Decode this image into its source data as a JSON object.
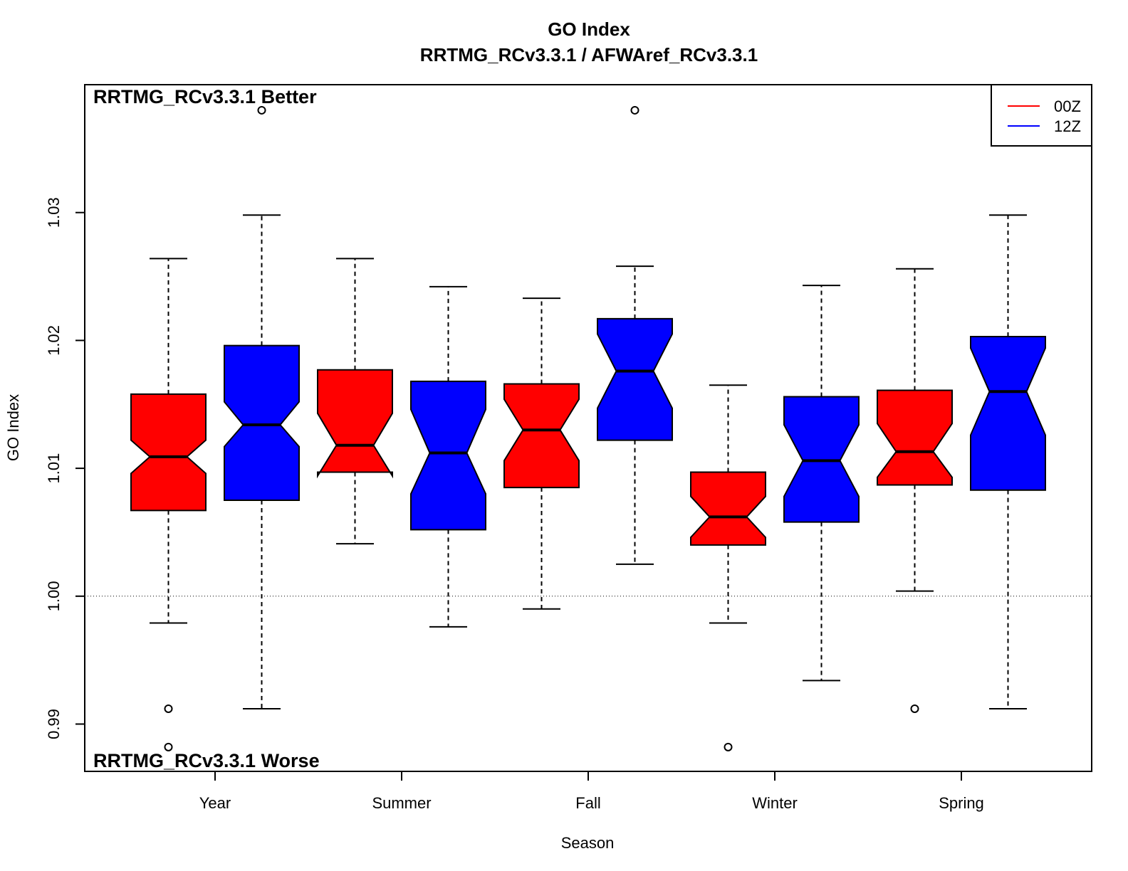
{
  "chart_data": {
    "type": "boxplot",
    "title": "GO Index",
    "subtitle": "RRTMG_RCv3.3.1 / AFWAref_RCv3.3.1",
    "xlabel": "Season",
    "ylabel": "GO Index",
    "ylim": [
      0.9863,
      1.04
    ],
    "yticks": [
      "0.99",
      "1.00",
      "1.01",
      "1.02",
      "1.03"
    ],
    "reference_line": 1.0,
    "annotations": {
      "top": "RRTMG_RCv3.3.1 Better",
      "bottom": "RRTMG_RCv3.3.1 Worse"
    },
    "categories": [
      "Year",
      "Summer",
      "Fall",
      "Winter",
      "Spring"
    ],
    "legend": {
      "position": "top-right",
      "entries": [
        {
          "label": "00Z",
          "color": "#ff0000"
        },
        {
          "label": "12Z",
          "color": "#0000ff"
        }
      ]
    },
    "series": [
      {
        "name": "00Z",
        "color": "#ff0000",
        "boxes": [
          {
            "category": "Year",
            "whisker_low": 0.9979,
            "q1": 1.0067,
            "median": 1.0109,
            "q3": 1.0158,
            "whisker_high": 1.0264,
            "notch_low": 1.0096,
            "notch_high": 1.0122,
            "outliers": [
              0.9912,
              0.9882
            ]
          },
          {
            "category": "Summer",
            "whisker_low": 1.0041,
            "q1": 1.0097,
            "median": 1.0118,
            "q3": 1.0177,
            "whisker_high": 1.0264,
            "notch_low": 1.0094,
            "notch_high": 1.0143,
            "outliers": []
          },
          {
            "category": "Fall",
            "whisker_low": 0.999,
            "q1": 1.0085,
            "median": 1.013,
            "q3": 1.0166,
            "whisker_high": 1.0233,
            "notch_low": 1.0106,
            "notch_high": 1.0154,
            "outliers": []
          },
          {
            "category": "Winter",
            "whisker_low": 0.9979,
            "q1": 1.004,
            "median": 1.0062,
            "q3": 1.0097,
            "whisker_high": 1.0165,
            "notch_low": 1.0046,
            "notch_high": 1.0078,
            "outliers": [
              0.9882
            ]
          },
          {
            "category": "Spring",
            "whisker_low": 1.0004,
            "q1": 1.0087,
            "median": 1.0113,
            "q3": 1.0161,
            "whisker_high": 1.0256,
            "notch_low": 1.0093,
            "notch_high": 1.0135,
            "outliers": [
              0.9912
            ]
          }
        ]
      },
      {
        "name": "12Z",
        "color": "#0000ff",
        "boxes": [
          {
            "category": "Year",
            "whisker_low": 0.9912,
            "q1": 1.0075,
            "median": 1.0134,
            "q3": 1.0196,
            "whisker_high": 1.0298,
            "notch_low": 1.0117,
            "notch_high": 1.0152,
            "outliers": [
              1.038
            ]
          },
          {
            "category": "Summer",
            "whisker_low": 0.9976,
            "q1": 1.0052,
            "median": 1.0112,
            "q3": 1.0168,
            "whisker_high": 1.0242,
            "notch_low": 1.008,
            "notch_high": 1.0146,
            "outliers": []
          },
          {
            "category": "Fall",
            "whisker_low": 1.0025,
            "q1": 1.0122,
            "median": 1.0176,
            "q3": 1.0217,
            "whisker_high": 1.0258,
            "notch_low": 1.0147,
            "notch_high": 1.0205,
            "outliers": [
              1.038
            ]
          },
          {
            "category": "Winter",
            "whisker_low": 0.9934,
            "q1": 1.0058,
            "median": 1.0106,
            "q3": 1.0156,
            "whisker_high": 1.0243,
            "notch_low": 1.0078,
            "notch_high": 1.0134,
            "outliers": []
          },
          {
            "category": "Spring",
            "whisker_low": 0.9912,
            "q1": 1.0083,
            "median": 1.016,
            "q3": 1.0203,
            "whisker_high": 1.0298,
            "notch_low": 1.0126,
            "notch_high": 1.0194,
            "outliers": []
          }
        ]
      }
    ]
  }
}
